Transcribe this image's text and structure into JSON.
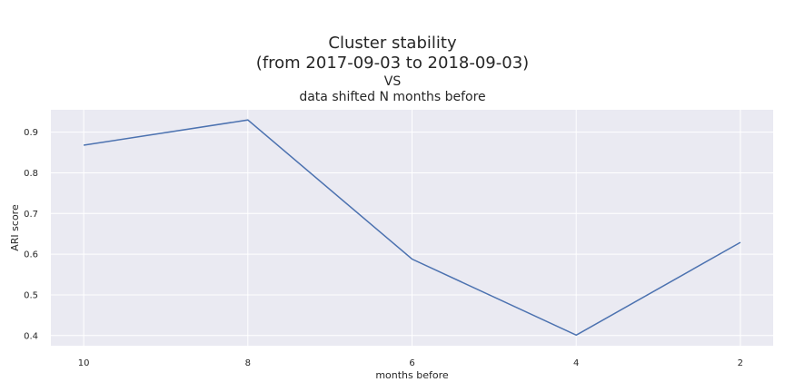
{
  "chart_data": {
    "type": "line",
    "title_lines": [
      "Cluster stability",
      "(from 2017-09-03 to 2018-09-03)"
    ],
    "subtitle_lines": [
      "VS",
      "data shifted N months before"
    ],
    "xlabel": "months before",
    "ylabel": "ARI score",
    "x": [
      10,
      8,
      6,
      4,
      2
    ],
    "x_tick_labels": [
      "10",
      "8",
      "6",
      "4",
      "2"
    ],
    "x_axis_inverted": true,
    "series": [
      {
        "values": [
          0.868,
          0.93,
          0.588,
          0.401,
          0.629
        ],
        "color": "#4c72b0"
      }
    ],
    "y_ticks": [
      0.4,
      0.5,
      0.6,
      0.7,
      0.8,
      0.9
    ],
    "y_tick_labels": [
      "0.4",
      "0.5",
      "0.6",
      "0.7",
      "0.8",
      "0.9"
    ],
    "ylim": [
      0.375,
      0.955
    ],
    "xlim": [
      10.4,
      1.6
    ],
    "grid": true,
    "background_color": "#eaeaf2",
    "grid_color": "#ffffff"
  }
}
